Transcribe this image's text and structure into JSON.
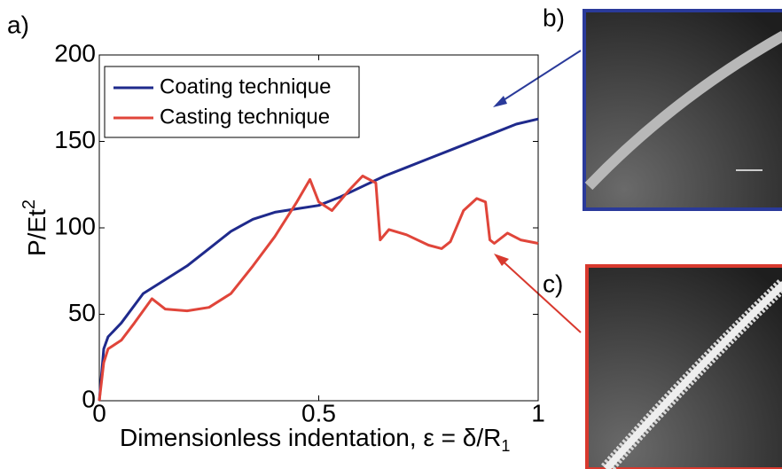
{
  "chart_data": {
    "type": "line",
    "panel_labels": [
      "a)",
      "b)",
      "c)"
    ],
    "xlabel": {
      "text": "Dimensionless indentation, ε = δ/R",
      "sub": "1"
    },
    "ylabel": {
      "text": "P/Et",
      "sup": "2"
    },
    "xlim": [
      0,
      1
    ],
    "ylim": [
      0,
      200
    ],
    "xticks": [
      0,
      0.5,
      1
    ],
    "yticks": [
      0,
      50,
      100,
      150,
      200
    ],
    "legend": "upper left",
    "series": [
      {
        "name": "Coating technique",
        "color": "#1f2a8c",
        "x": [
          0,
          0.01,
          0.02,
          0.05,
          0.1,
          0.15,
          0.2,
          0.25,
          0.3,
          0.35,
          0.4,
          0.45,
          0.5,
          0.55,
          0.6,
          0.65,
          0.7,
          0.75,
          0.8,
          0.85,
          0.9,
          0.95,
          1.0
        ],
        "values": [
          0,
          30,
          37,
          45,
          62,
          70,
          78,
          88,
          98,
          105,
          109,
          111,
          113,
          118,
          124,
          130,
          135,
          140,
          145,
          150,
          155,
          160,
          163
        ]
      },
      {
        "name": "Casting technique",
        "color": "#e0453a",
        "x": [
          0,
          0.01,
          0.02,
          0.05,
          0.08,
          0.12,
          0.15,
          0.2,
          0.25,
          0.3,
          0.35,
          0.4,
          0.45,
          0.48,
          0.5,
          0.53,
          0.57,
          0.6,
          0.63,
          0.64,
          0.66,
          0.7,
          0.75,
          0.78,
          0.8,
          0.83,
          0.86,
          0.88,
          0.89,
          0.9,
          0.93,
          0.96,
          1.0
        ],
        "values": [
          0,
          22,
          30,
          35,
          45,
          59,
          53,
          52,
          54,
          62,
          78,
          95,
          115,
          128,
          115,
          110,
          122,
          130,
          126,
          93,
          99,
          96,
          90,
          88,
          92,
          110,
          117,
          115,
          93,
          91,
          97,
          93,
          91
        ]
      }
    ]
  }
}
